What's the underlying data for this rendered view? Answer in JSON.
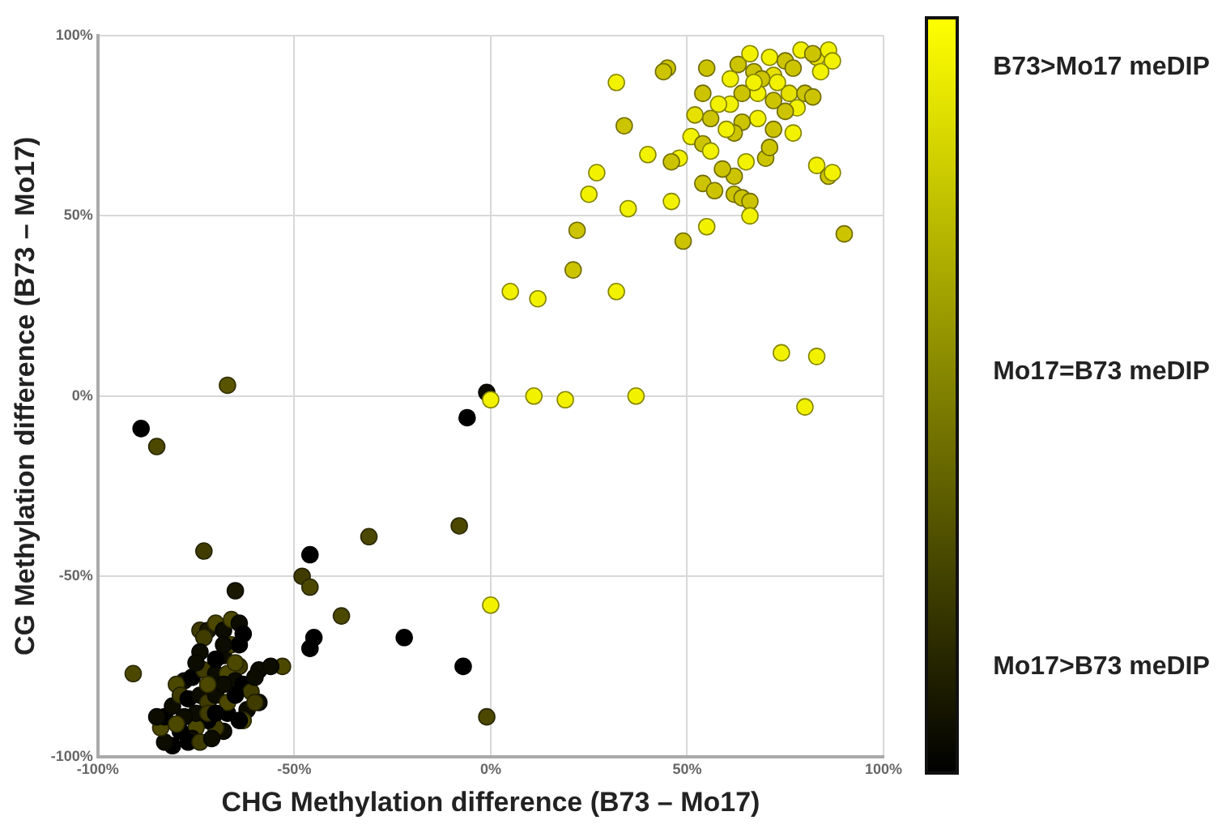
{
  "chart_data": {
    "type": "scatter",
    "xlabel": "CHG Methylation difference (B73 – Mo17)",
    "ylabel": "CG Methylation difference (B73 – Mo17)",
    "xlim": [
      -100,
      100
    ],
    "ylim": [
      -100,
      100
    ],
    "xticks": [
      {
        "value": -100,
        "label": "-100%"
      },
      {
        "value": -50,
        "label": "-50%"
      },
      {
        "value": 0,
        "label": "0%"
      },
      {
        "value": 50,
        "label": "50%"
      },
      {
        "value": 100,
        "label": "100%"
      }
    ],
    "yticks": [
      {
        "value": -100,
        "label": "-100%"
      },
      {
        "value": -50,
        "label": "-50%"
      },
      {
        "value": 0,
        "label": "0%"
      },
      {
        "value": 50,
        "label": "50%"
      },
      {
        "value": 100,
        "label": "100%"
      }
    ],
    "grid": true,
    "marker": "circle",
    "annotations": [
      "B73>Mo17 meDIP",
      "Mo17=B73 meDIP",
      "Mo17>B73 meDIP"
    ],
    "series": [
      {
        "x": [
          32,
          45,
          44,
          55,
          63,
          66,
          67,
          71,
          75,
          79,
          83,
          86,
          87,
          84,
          82,
          77,
          72,
          69,
          68,
          72,
          76,
          80,
          82,
          78,
          75,
          77,
          72,
          68,
          64,
          62,
          60,
          56,
          52,
          51,
          54,
          56,
          61,
          58,
          54,
          61,
          64,
          67,
          73,
          65,
          62,
          59,
          70,
          71,
          48,
          46,
          40,
          34,
          27,
          25,
          35,
          46,
          54,
          57,
          62,
          64,
          66,
          66,
          55,
          49,
          83,
          86,
          87,
          90,
          22,
          21,
          5,
          12,
          32,
          83,
          74,
          80,
          11,
          19,
          37,
          0,
          0
        ],
        "values": [
          87,
          91,
          90,
          91,
          92,
          95,
          90,
          94,
          93,
          96,
          94,
          96,
          93,
          90,
          95,
          91,
          89,
          88,
          84,
          82,
          84,
          84,
          83,
          80,
          79,
          73,
          74,
          77,
          76,
          73,
          74,
          77,
          78,
          72,
          70,
          68,
          81,
          81,
          84,
          88,
          84,
          87,
          87,
          65,
          61,
          63,
          66,
          69,
          66,
          65,
          67,
          75,
          62,
          56,
          52,
          54,
          59,
          57,
          56,
          55,
          54,
          50,
          47,
          43,
          64,
          61,
          62,
          45,
          46,
          35,
          29,
          27,
          29,
          11,
          12,
          -3,
          0,
          -1,
          0,
          -1,
          -58
        ],
        "colors": [
          "#f2f200",
          "#ccc400",
          "#ccc400",
          "#ccc400",
          "#ccc400",
          "#f2f200",
          "#ccc400",
          "#f2f200",
          "#ccc400",
          "#f2f200",
          "#e6e100",
          "#f2f200",
          "#f2f200",
          "#f2f200",
          "#ccc400",
          "#ccc400",
          "#e6e100",
          "#ccc400",
          "#f2f200",
          "#ccc400",
          "#e6e100",
          "#ccc400",
          "#ccc400",
          "#f2f200",
          "#ccc400",
          "#f2f200",
          "#ccc400",
          "#f2f200",
          "#ccc400",
          "#ccc400",
          "#f2f200",
          "#ccc400",
          "#e6e100",
          "#f2f200",
          "#ccc400",
          "#f2f200",
          "#f2f200",
          "#f2f200",
          "#ccc400",
          "#f2f200",
          "#ccc400",
          "#f2f200",
          "#f2f200",
          "#f2f200",
          "#ccc400",
          "#ccc400",
          "#ccc400",
          "#ccc400",
          "#f2f200",
          "#ccc400",
          "#f2f200",
          "#ccc400",
          "#f2f200",
          "#f2f200",
          "#f2f200",
          "#f2f200",
          "#ccc400",
          "#ccc400",
          "#ccc400",
          "#ccc400",
          "#ccc400",
          "#f2f200",
          "#f2f200",
          "#ccc400",
          "#f2f200",
          "#ccc400",
          "#f2f200",
          "#ccc400",
          "#ccc400",
          "#ccc400",
          "#f2f200",
          "#f2f200",
          "#f2f200",
          "#f2f200",
          "#f2f200",
          "#f2f200",
          "#f2f200",
          "#f2f200",
          "#f2f200",
          "#f2f200",
          "#f2f200"
        ]
      },
      {
        "x": [
          -67,
          -89,
          -85,
          -73,
          -1,
          -6,
          -8,
          -31,
          -46,
          -48,
          -46,
          -65,
          -38,
          -22,
          -7,
          -1,
          -46,
          -45,
          -91,
          -53,
          -74,
          -72,
          -70,
          -68,
          -66,
          -64,
          -63,
          -73,
          -74,
          -68,
          -66,
          -64,
          -64,
          -59,
          -56,
          -78,
          -80,
          -76,
          -73,
          -70,
          -67,
          -65,
          -63,
          -61,
          -59,
          -62,
          -63,
          -67,
          -68,
          -70,
          -72,
          -75,
          -76,
          -79,
          -81,
          -83,
          -84,
          -83,
          -81,
          -79,
          -77,
          -74,
          -72,
          -70,
          -67,
          -65,
          -75,
          -72,
          -70,
          -78,
          -80,
          -85,
          -77,
          -74,
          -71,
          -64,
          -60,
          -68,
          -72,
          -75,
          -70,
          -68,
          -65,
          -60
        ],
        "values": [
          3,
          -9,
          -14,
          -43,
          1,
          -6,
          -36,
          -39,
          -44,
          -50,
          -53,
          -54,
          -61,
          -67,
          -75,
          -89,
          -70,
          -67,
          -77,
          -75,
          -65,
          -65,
          -63,
          -65,
          -62,
          -63,
          -66,
          -67,
          -71,
          -72,
          -69,
          -69,
          -75,
          -76,
          -75,
          -79,
          -80,
          -78,
          -76,
          -77,
          -77,
          -79,
          -80,
          -82,
          -85,
          -87,
          -90,
          -88,
          -93,
          -92,
          -90,
          -92,
          -95,
          -93,
          -97,
          -96,
          -92,
          -89,
          -86,
          -83,
          -84,
          -83,
          -85,
          -83,
          -85,
          -83,
          -88,
          -88,
          -88,
          -89,
          -91,
          -89,
          -96,
          -96,
          -95,
          -90,
          -85,
          -80,
          -80,
          -74,
          -73,
          -69,
          -74,
          -78
        ],
        "colors": [
          "#595400",
          "#000000",
          "#4c4800",
          "#403c00",
          "#0d0c00",
          "#000000",
          "#4c4800",
          "#4c4800",
          "#000000",
          "#403c00",
          "#4c4800",
          "#1a1800",
          "#4c4800",
          "#000000",
          "#000000",
          "#4c4800",
          "#000000",
          "#000000",
          "#4c4800",
          "#4c4800",
          "#403c00",
          "#1a1800",
          "#4c4800",
          "#0d0c00",
          "#4c4800",
          "#0d0c00",
          "#000000",
          "#403c00",
          "#0d0c00",
          "#0d0c00",
          "#4c4800",
          "#000000",
          "#403c00",
          "#0d0c00",
          "#0d0c00",
          "#0d0c00",
          "#4c4800",
          "#000000",
          "#403c00",
          "#0d0c00",
          "#4c4800",
          "#0d0c00",
          "#000000",
          "#403c00",
          "#0d0c00",
          "#0d0c00",
          "#4c4800",
          "#000000",
          "#0d0c00",
          "#403c00",
          "#000000",
          "#4c4800",
          "#0d0c00",
          "#000000",
          "#000000",
          "#0d0c00",
          "#4c4800",
          "#000000",
          "#0d0c00",
          "#403c00",
          "#000000",
          "#0d0c00",
          "#403c00",
          "#0d0c00",
          "#4c4800",
          "#000000",
          "#0d0c00",
          "#403c00",
          "#000000",
          "#0d0c00",
          "#4c4800",
          "#0d0c00",
          "#000000",
          "#403c00",
          "#0d0c00",
          "#000000",
          "#403c00",
          "#0d0c00",
          "#4c4800",
          "#0d0c00",
          "#000000",
          "#0d0c00",
          "#4c4800",
          "#0d0c00"
        ]
      }
    ]
  }
}
